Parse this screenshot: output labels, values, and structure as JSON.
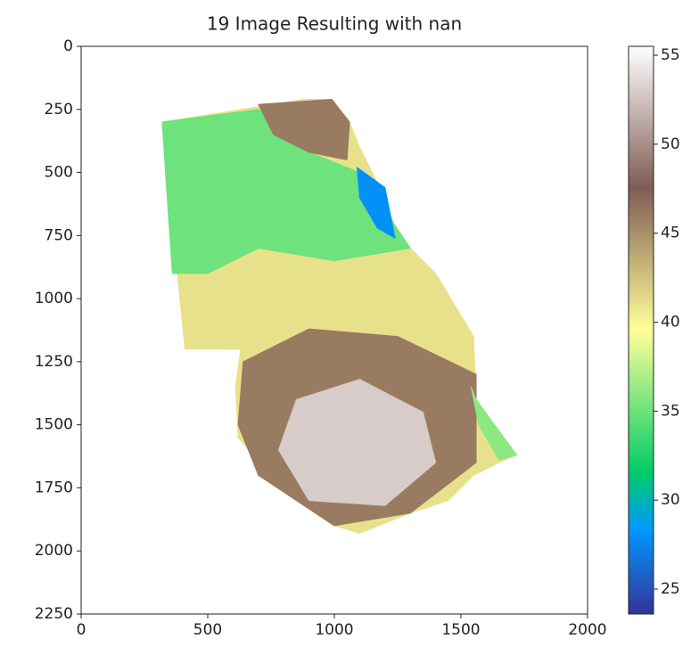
{
  "chart_data": {
    "type": "heatmap",
    "title": "19 Image Resulting with nan",
    "xlim": [
      0,
      2000
    ],
    "xticks": [
      0,
      500,
      1000,
      1500,
      2000
    ],
    "ylim": [
      2250,
      0
    ],
    "yticks": [
      0,
      250,
      500,
      750,
      1000,
      1250,
      1500,
      1750,
      2000,
      2250
    ],
    "colormap": "terrain",
    "colorbar": {
      "clim": [
        23.6,
        55.5
      ],
      "ticks": [
        25,
        30,
        35,
        40,
        45,
        50,
        55
      ]
    },
    "zones": [
      {
        "value": 41,
        "x": [
          320,
          880,
          990,
          1060,
          1100,
          1200,
          1250,
          1400,
          1550,
          1560,
          1720,
          1650,
          1550,
          1450,
          1300,
          1100,
          1000,
          850,
          750,
          620,
          610,
          630,
          560,
          410
        ],
        "y": [
          300,
          210,
          210,
          300,
          400,
          600,
          750,
          900,
          1150,
          1400,
          1620,
          1650,
          1700,
          1800,
          1850,
          1930,
          1900,
          1800,
          1700,
          1550,
          1350,
          1200,
          1200,
          1200
        ]
      },
      {
        "value": 35,
        "x": [
          320,
          700,
          900,
          1100,
          1200,
          1300,
          1000,
          700,
          500,
          360
        ],
        "y": [
          300,
          250,
          420,
          500,
          650,
          800,
          850,
          800,
          900,
          900
        ]
      },
      {
        "value": 46,
        "x": [
          700,
          990,
          1060,
          1050,
          900,
          760
        ],
        "y": [
          230,
          210,
          300,
          450,
          420,
          350
        ]
      },
      {
        "value": 28,
        "x": [
          1090,
          1200,
          1240,
          1170,
          1100
        ],
        "y": [
          480,
          560,
          760,
          720,
          600
        ]
      },
      {
        "value": 46,
        "x": [
          640,
          900,
          1250,
          1560,
          1560,
          1300,
          1000,
          700,
          620
        ],
        "y": [
          1250,
          1120,
          1150,
          1300,
          1650,
          1850,
          1900,
          1700,
          1500
        ]
      },
      {
        "value": 53,
        "x": [
          850,
          1100,
          1350,
          1400,
          1200,
          900,
          780
        ],
        "y": [
          1400,
          1320,
          1450,
          1650,
          1820,
          1800,
          1600
        ]
      },
      {
        "value": 36,
        "x": [
          1540,
          1560,
          1720,
          1650,
          1570
        ],
        "y": [
          1350,
          1400,
          1620,
          1640,
          1500
        ]
      }
    ]
  }
}
